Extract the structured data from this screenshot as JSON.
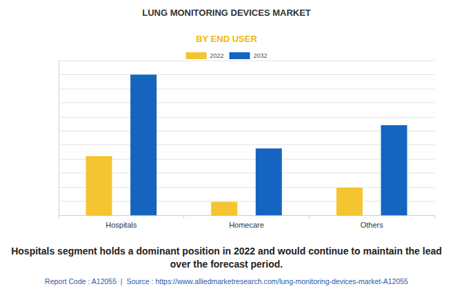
{
  "chart_data": {
    "type": "bar",
    "title": "LUNG MONITORING DEVICES MARKET",
    "subtitle": "BY END USER",
    "categories": [
      "Hospitals",
      "Homecare",
      "Others"
    ],
    "series": [
      {
        "name": "2022",
        "color": "#f4c531",
        "values": [
          4.2,
          0.95,
          1.95
        ]
      },
      {
        "name": "2032",
        "color": "#1565c0",
        "values": [
          10.0,
          4.75,
          6.4
        ]
      }
    ],
    "ylim": [
      0,
      11
    ],
    "yticks": [
      0,
      1,
      2,
      3,
      4,
      5,
      6,
      7,
      8,
      9,
      10,
      11
    ],
    "grid": true,
    "tick_labels": "x",
    "legend": "top",
    "note": "Hospitals segment holds a dominant position in 2022 and would continue to maintain the lead over the forecast period.",
    "source": "Report Code : A12055  |  Source : https://www.alliedmarketresearch.com/lung-monitoring-devices-market-A12055"
  }
}
